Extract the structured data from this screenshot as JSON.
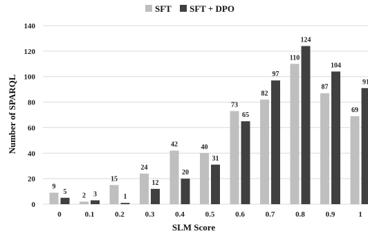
{
  "chart_data": {
    "type": "bar",
    "title": "",
    "xlabel": "SLM Score",
    "ylabel": "Number of SPARQL",
    "ylim": [
      0,
      140
    ],
    "yticks": [
      0,
      20,
      40,
      60,
      80,
      100,
      120,
      140
    ],
    "grid": true,
    "legend_position": "top",
    "categories": [
      "0",
      "0.1",
      "0.2",
      "0.3",
      "0.4",
      "0.5",
      "0.6",
      "0.7",
      "0.8",
      "0.9",
      "1"
    ],
    "series": [
      {
        "name": "SFT",
        "color": "#bfbfbf",
        "values": [
          9,
          2,
          15,
          24,
          42,
          40,
          73,
          82,
          110,
          87,
          69
        ]
      },
      {
        "name": "SFT + DPO",
        "color": "#404040",
        "values": [
          5,
          3,
          1,
          12,
          20,
          31,
          65,
          97,
          124,
          104,
          91
        ]
      }
    ]
  }
}
